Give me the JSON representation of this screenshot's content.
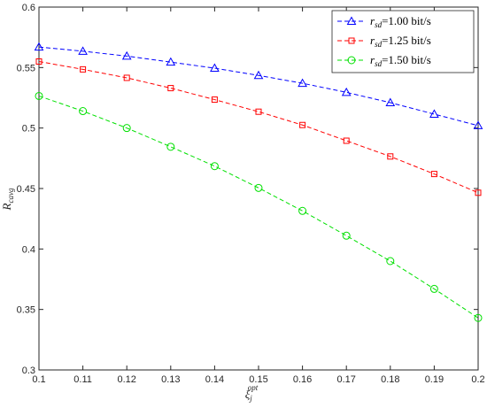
{
  "chart_data": {
    "type": "line",
    "xlabel": "ξ",
    "xlabel_sub": "j",
    "xlabel_sup": "opt",
    "ylabel": "R",
    "ylabel_sub": "cavg",
    "x": [
      0.1,
      0.11,
      0.12,
      0.13,
      0.14,
      0.15,
      0.16,
      0.17,
      0.18,
      0.19,
      0.2
    ],
    "xlim": [
      0.1,
      0.2
    ],
    "ylim": [
      0.3,
      0.6
    ],
    "xticks": [
      "0.1",
      "0.11",
      "0.12",
      "0.13",
      "0.14",
      "0.15",
      "0.16",
      "0.17",
      "0.18",
      "0.19",
      "0.2"
    ],
    "yticks": [
      "0.3",
      "0.35",
      "0.4",
      "0.45",
      "0.5",
      "0.55",
      "0.6"
    ],
    "grid": false,
    "legend_position": "top-right",
    "series": [
      {
        "name_var": "r",
        "name_sub": "sd",
        "name_rest": "=1.00 bit/s",
        "color": "#0000ff",
        "marker": "triangle",
        "values": [
          0.567,
          0.5635,
          0.5595,
          0.5545,
          0.5495,
          0.5435,
          0.537,
          0.5295,
          0.521,
          0.5115,
          0.502
        ]
      },
      {
        "name_var": "r",
        "name_sub": "sd",
        "name_rest": "=1.25 bit/s",
        "color": "#ff0000",
        "marker": "square",
        "values": [
          0.555,
          0.5485,
          0.5415,
          0.533,
          0.5235,
          0.5135,
          0.5025,
          0.4895,
          0.4765,
          0.462,
          0.4465
        ]
      },
      {
        "name_var": "r",
        "name_sub": "sd",
        "name_rest": "=1.50 bit/s",
        "color": "#00e000",
        "marker": "circle",
        "values": [
          0.5265,
          0.514,
          0.5,
          0.4845,
          0.4685,
          0.4505,
          0.4315,
          0.411,
          0.39,
          0.367,
          0.343
        ]
      }
    ]
  }
}
